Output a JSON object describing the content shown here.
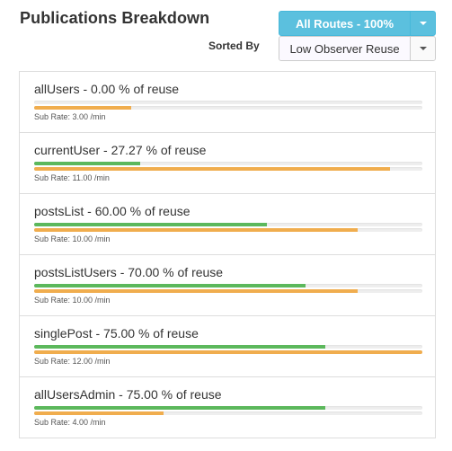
{
  "header": {
    "title": "Publications Breakdown",
    "route_button_label": "All Routes - 100%",
    "sorted_by_label": "Sorted By",
    "sort_button_label": "Low Observer Reuse"
  },
  "colors": {
    "reuse_bar": "#5cb85c",
    "sub_rate_bar": "#f0ad4e",
    "route_button": "#5bc0de"
  },
  "publications": [
    {
      "title": "allUsers - 0.00 % of reuse",
      "reuse": 0.0,
      "sub_rate_fraction": 0.25,
      "sub_rate_text": "Sub Rate: 3.00 /min"
    },
    {
      "title": "currentUser - 27.27 % of reuse",
      "reuse": 0.2727,
      "sub_rate_fraction": 0.917,
      "sub_rate_text": "Sub Rate: 11.00 /min"
    },
    {
      "title": "postsList - 60.00 % of reuse",
      "reuse": 0.6,
      "sub_rate_fraction": 0.833,
      "sub_rate_text": "Sub Rate: 10.00 /min"
    },
    {
      "title": "postsListUsers - 70.00 % of reuse",
      "reuse": 0.7,
      "sub_rate_fraction": 0.833,
      "sub_rate_text": "Sub Rate: 10.00 /min"
    },
    {
      "title": "singlePost - 75.00 % of reuse",
      "reuse": 0.75,
      "sub_rate_fraction": 1.0,
      "sub_rate_text": "Sub Rate: 12.00 /min"
    },
    {
      "title": "allUsersAdmin - 75.00 % of reuse",
      "reuse": 0.75,
      "sub_rate_fraction": 0.333,
      "sub_rate_text": "Sub Rate: 4.00 /min"
    }
  ]
}
